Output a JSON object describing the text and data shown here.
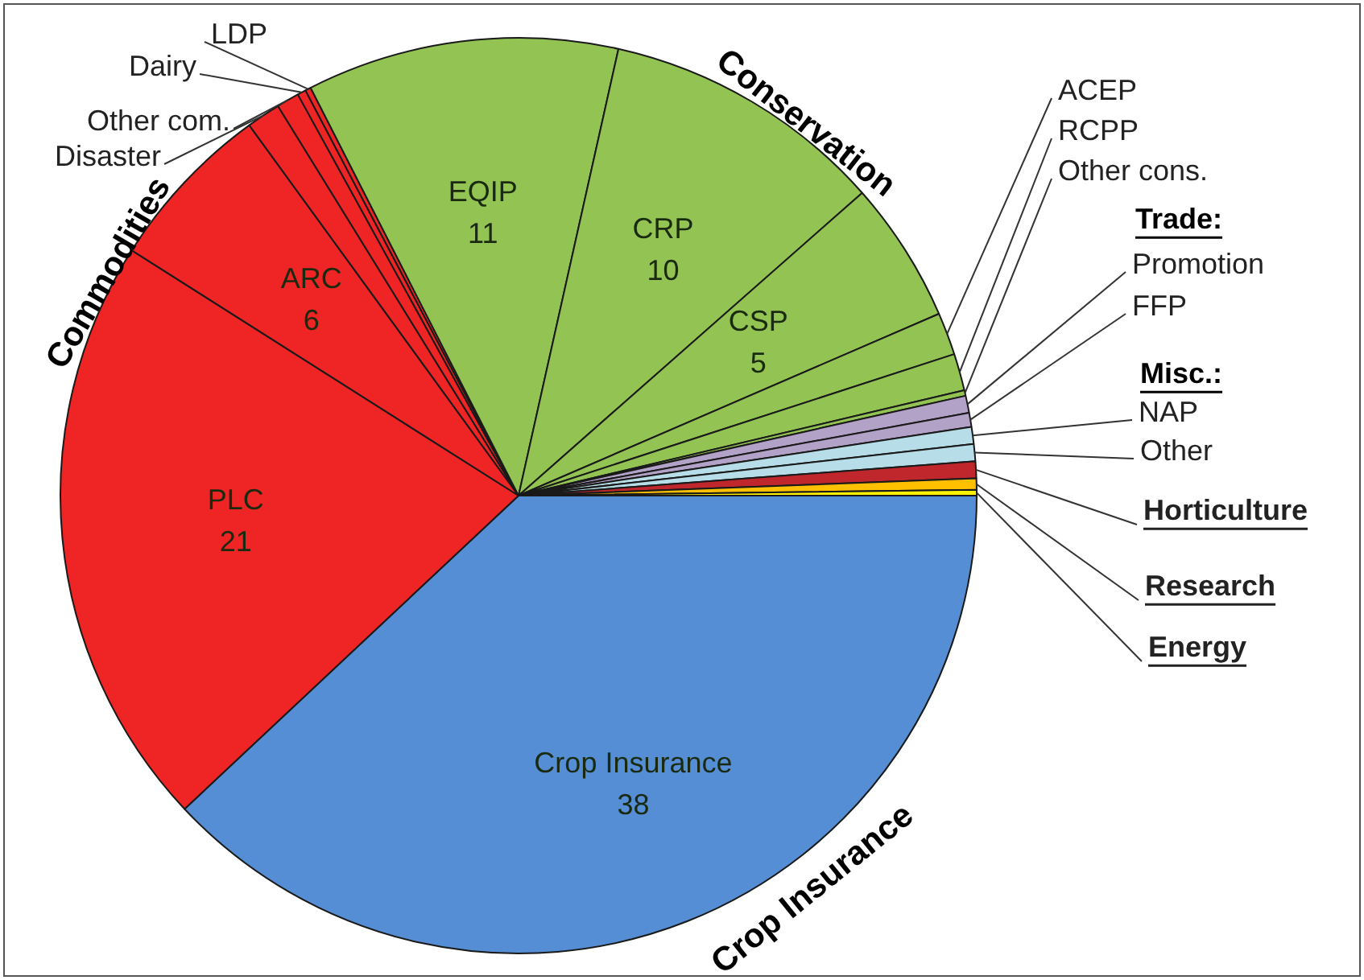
{
  "chart_data": {
    "type": "pie",
    "categories": [
      "Crop Insurance",
      "PLC",
      "ARC",
      "Disaster",
      "Other com.",
      "Dairy",
      "LDP",
      "EQIP",
      "CRP",
      "CSP",
      "ACEP",
      "RCPP",
      "Other cons.",
      "Promotion",
      "FFP",
      "NAP",
      "Other",
      "Horticulture",
      "Research",
      "Energy"
    ],
    "values": [
      38,
      21,
      6,
      1.2,
      0.8,
      0.3,
      0.2,
      11,
      10,
      5,
      1.5,
      1.3,
      0.2,
      0.6,
      0.5,
      0.6,
      0.6,
      0.6,
      0.4,
      0.2
    ],
    "value_labels": [
      "38",
      "21",
      "6",
      null,
      null,
      null,
      null,
      "11",
      "10",
      "5",
      null,
      null,
      null,
      null,
      null,
      null,
      null,
      null,
      null,
      null
    ],
    "colors": [
      "#558ed5",
      "#ee2524",
      "#ee2524",
      "#ee2524",
      "#ee2524",
      "#ee2524",
      "#ee2524",
      "#92c353",
      "#92c353",
      "#92c353",
      "#92c353",
      "#92c353",
      "#92c353",
      "#b3a2c7",
      "#b3a2c7",
      "#b7dde8",
      "#b7dde8",
      "#c0272d",
      "#ffc000",
      "#fff200"
    ],
    "annotations": [
      "Commodities",
      "Conservation",
      "Crop Insurance",
      "Trade:",
      "Misc.:"
    ],
    "legend": false
  }
}
